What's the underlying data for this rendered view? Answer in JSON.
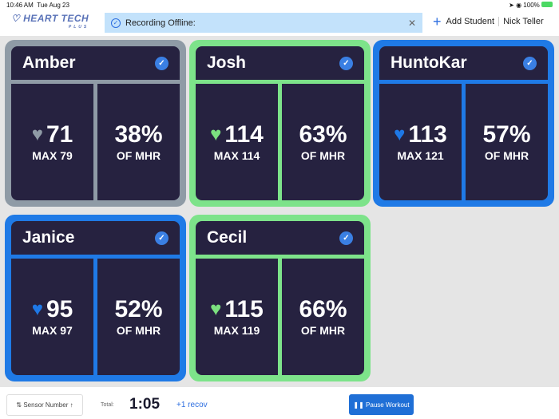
{
  "status_bar": {
    "time": "10:46 AM",
    "date": "Tue Aug 23",
    "battery": "100%"
  },
  "header": {
    "logo": "HEART TECH",
    "logo_sub": "PLUS",
    "banner": "Recording Offline:",
    "add_student": "Add Student",
    "user": "Nick Teller"
  },
  "colors": {
    "gray": "#8f9ba6",
    "green": "#7de38a",
    "blue": "#1f7ae6",
    "dark": "#262240"
  },
  "students": [
    {
      "name": "Amber",
      "hr": "71",
      "max": "MAX 79",
      "pct": "38%",
      "pct_label": "OF MHR",
      "zone": "gray"
    },
    {
      "name": "Josh",
      "hr": "114",
      "max": "MAX 114",
      "pct": "63%",
      "pct_label": "OF MHR",
      "zone": "green"
    },
    {
      "name": "HuntoKar",
      "hr": "113",
      "max": "MAX 121",
      "pct": "57%",
      "pct_label": "OF MHR",
      "zone": "blue"
    },
    {
      "name": "Janice",
      "hr": "95",
      "max": "MAX 97",
      "pct": "52%",
      "pct_label": "OF MHR",
      "zone": "blue"
    },
    {
      "name": "Cecil",
      "hr": "115",
      "max": "MAX 119",
      "pct": "66%",
      "pct_label": "OF MHR",
      "zone": "green"
    }
  ],
  "footer": {
    "sort": "Sensor Number",
    "total_label": "Total:",
    "total": "1:05",
    "recov": "+1 recov",
    "pause": "Pause Workout"
  }
}
